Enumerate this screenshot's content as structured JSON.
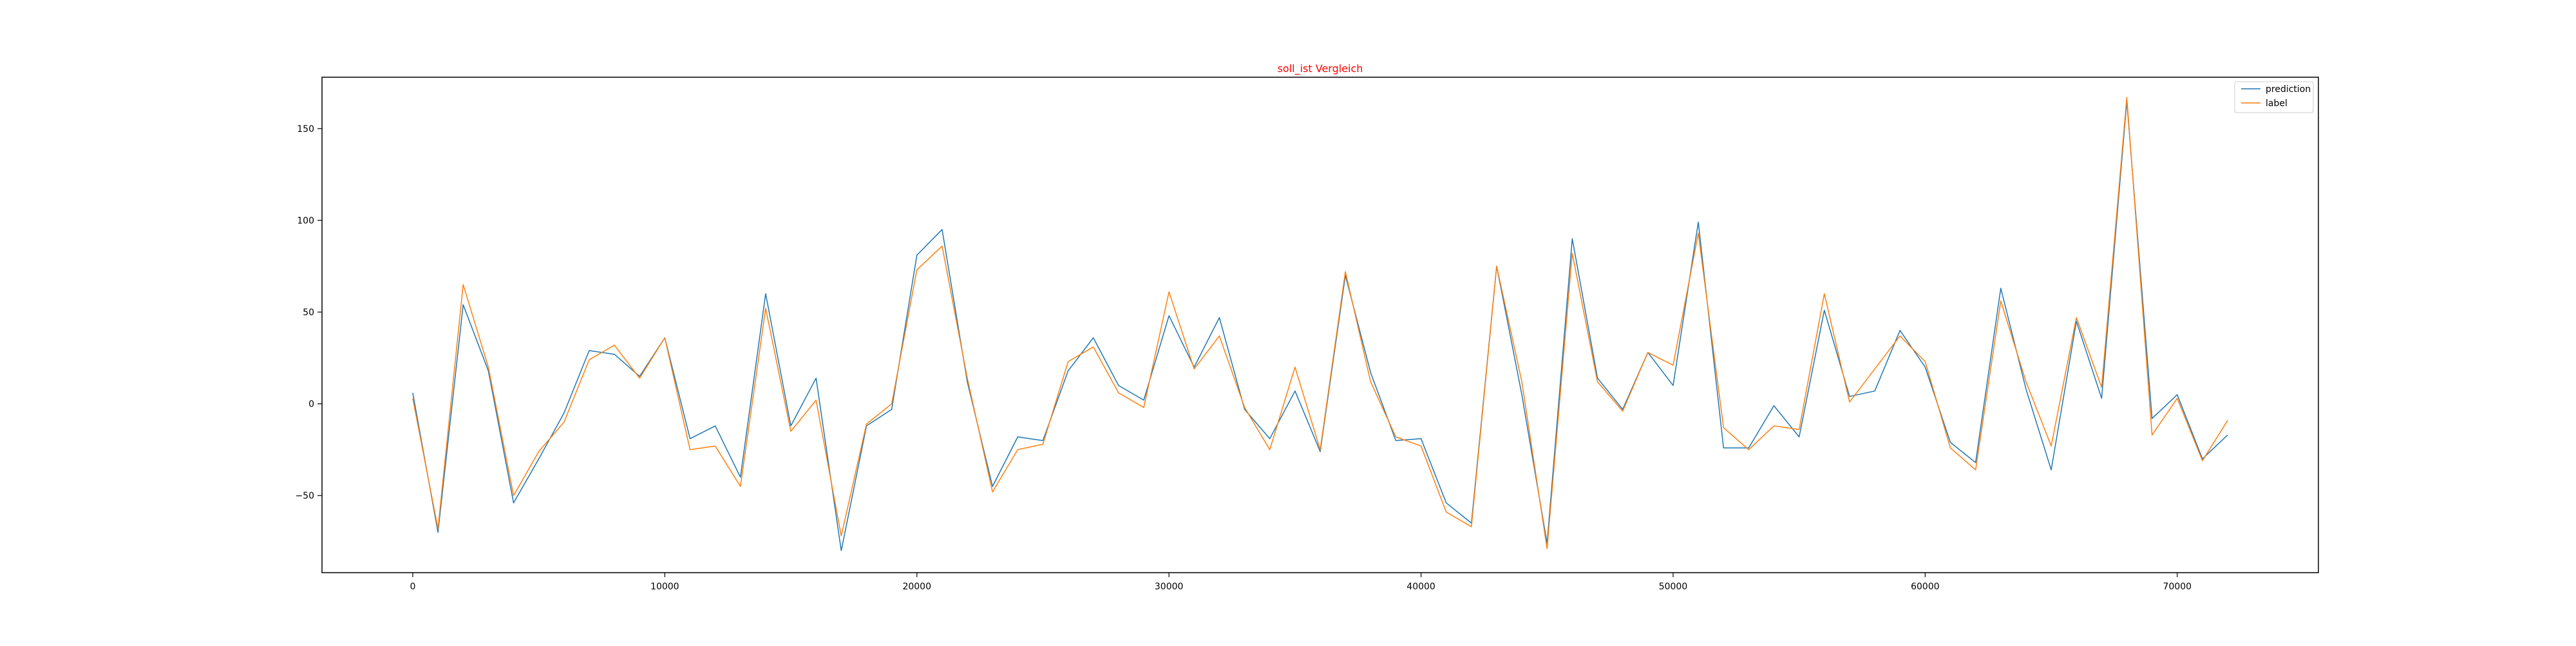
{
  "chart_data": {
    "type": "line",
    "title": "soll_ist Vergleich",
    "title_color": "#ff0000",
    "xlabel": "",
    "ylabel": "",
    "xlim": [
      -3600,
      75600
    ],
    "ylim": [
      -92,
      178
    ],
    "x_ticks": [
      0,
      10000,
      20000,
      30000,
      40000,
      50000,
      60000,
      70000
    ],
    "y_ticks": [
      -50,
      0,
      50,
      100,
      150
    ],
    "grid": false,
    "legend_position": "top-right",
    "x": [
      0,
      1000,
      2000,
      3000,
      4000,
      5000,
      6000,
      7000,
      8000,
      9000,
      10000,
      11000,
      12000,
      13000,
      14000,
      15000,
      16000,
      17000,
      18000,
      19000,
      20000,
      21000,
      22000,
      23000,
      24000,
      25000,
      26000,
      27000,
      28000,
      29000,
      30000,
      31000,
      32000,
      33000,
      34000,
      35000,
      36000,
      37000,
      38000,
      39000,
      40000,
      41000,
      42000,
      43000,
      44000,
      45000,
      46000,
      47000,
      48000,
      49000,
      50000,
      51000,
      52000,
      53000,
      54000,
      55000,
      56000,
      57000,
      58000,
      59000,
      60000,
      61000,
      62000,
      63000,
      64000,
      65000,
      66000,
      67000,
      68000,
      69000,
      70000,
      71000,
      72000
    ],
    "series": [
      {
        "name": "prediction",
        "color": "#1f77b4",
        "values": [
          6,
          -70,
          54,
          18,
          -54,
          -30,
          -5,
          29,
          27,
          15,
          36,
          -19,
          -12,
          -40,
          60,
          -12,
          14,
          -80,
          -12,
          -3,
          81,
          95,
          12,
          -45,
          -18,
          -20,
          18,
          36,
          10,
          2,
          48,
          20,
          47,
          -3,
          -19,
          7,
          -26,
          70,
          17,
          -20,
          -19,
          -54,
          -65,
          75,
          5,
          -76,
          90,
          14,
          -3,
          28,
          10,
          99,
          -24,
          -24,
          -1,
          -18,
          51,
          4,
          7,
          40,
          20,
          -21,
          -32,
          63,
          8,
          -36,
          45,
          3,
          165,
          -8,
          5,
          -30,
          -17
        ]
      },
      {
        "name": "label",
        "color": "#ff7f0e",
        "values": [
          3,
          -68,
          65,
          20,
          -50,
          -26,
          -10,
          24,
          32,
          14,
          36,
          -25,
          -23,
          -45,
          52,
          -15,
          2,
          -72,
          -11,
          0,
          73,
          86,
          14,
          -48,
          -25,
          -22,
          23,
          31,
          6,
          -2,
          61,
          19,
          37,
          -2,
          -25,
          20,
          -25,
          72,
          12,
          -18,
          -23,
          -59,
          -67,
          75,
          12,
          -79,
          82,
          12,
          -4,
          28,
          21,
          93,
          -13,
          -25,
          -12,
          -14,
          60,
          1,
          19,
          37,
          23,
          -24,
          -36,
          56,
          12,
          -23,
          47,
          9,
          167,
          -17,
          3,
          -31,
          -9
        ]
      }
    ]
  }
}
